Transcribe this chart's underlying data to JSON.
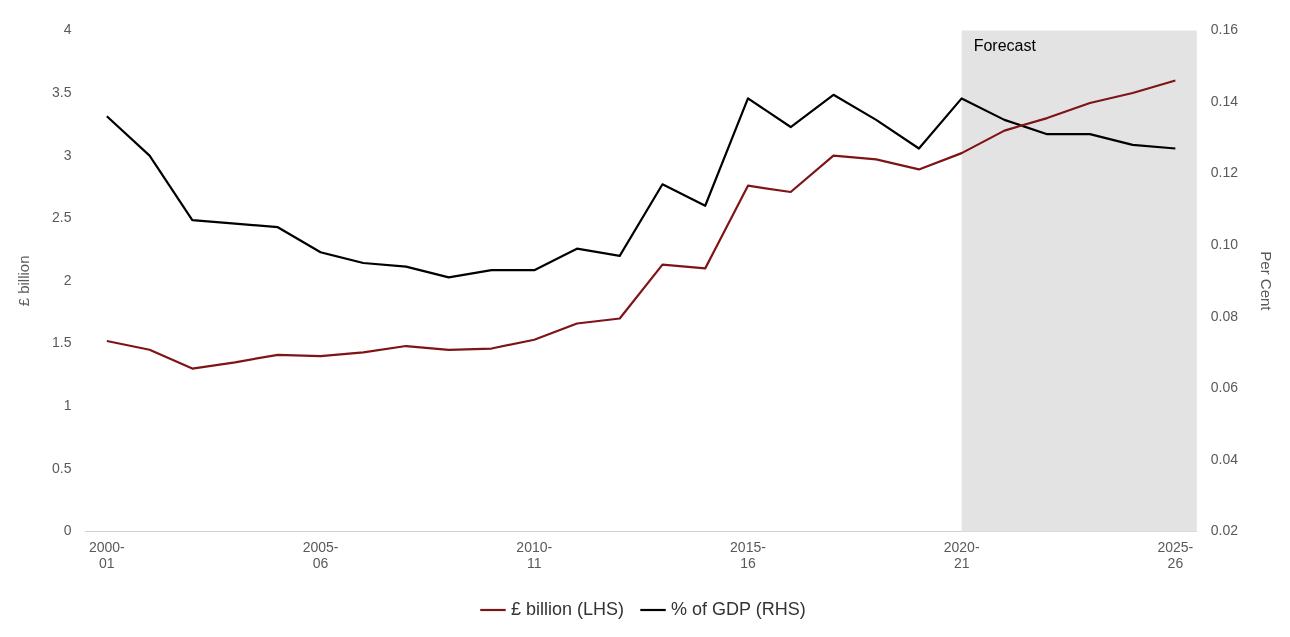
{
  "chart_data": {
    "type": "line",
    "ylabel": "£ billion",
    "y2label": "Per Cent",
    "categories": [
      "2000-01",
      null,
      null,
      null,
      null,
      "2005-06",
      null,
      null,
      null,
      null,
      "2010-11",
      null,
      null,
      null,
      null,
      "2015-16",
      null,
      null,
      null,
      null,
      "2020-21",
      null,
      null,
      null,
      null,
      "2025-26"
    ],
    "series": [
      {
        "name": "£ billion (LHS)",
        "color": "#7f1416",
        "values": [
          1.52,
          1.45,
          1.3,
          1.35,
          1.41,
          1.4,
          1.43,
          1.48,
          1.45,
          1.46,
          1.53,
          1.66,
          1.7,
          2.13,
          2.1,
          2.76,
          2.71,
          3.0,
          2.97,
          2.89,
          3.02,
          3.2,
          3.3,
          3.42,
          3.5,
          3.6
        ]
      },
      {
        "name": "% of GDP (RHS)",
        "color": "#000000",
        "axis": "y2",
        "values": [
          0.136,
          0.125,
          0.107,
          0.106,
          0.105,
          0.098,
          0.095,
          0.094,
          0.091,
          0.093,
          0.093,
          0.099,
          0.097,
          0.117,
          0.111,
          0.141,
          0.133,
          0.142,
          0.135,
          0.127,
          0.141,
          0.135,
          0.131,
          0.131,
          0.128,
          0.127
        ]
      }
    ],
    "ylim": [
      0,
      4
    ],
    "yticks": [
      0,
      0.5,
      1,
      1.5,
      2,
      2.5,
      3,
      3.5,
      4
    ],
    "y2lim": [
      0.02,
      0.16
    ],
    "y2ticks": [
      0.02,
      0.04,
      0.06,
      0.08,
      {
        "value": 0.1,
        "label": "0.10"
      },
      0.12,
      0.14,
      0.16
    ],
    "bands": [
      {
        "axis": "x",
        "from": "2020-21",
        "to": "2025-26",
        "label": "Forecast",
        "color": "#e3e3e3"
      }
    ],
    "grid": false,
    "legend": "bottom",
    "marker": "none",
    "line_style": "solid"
  }
}
